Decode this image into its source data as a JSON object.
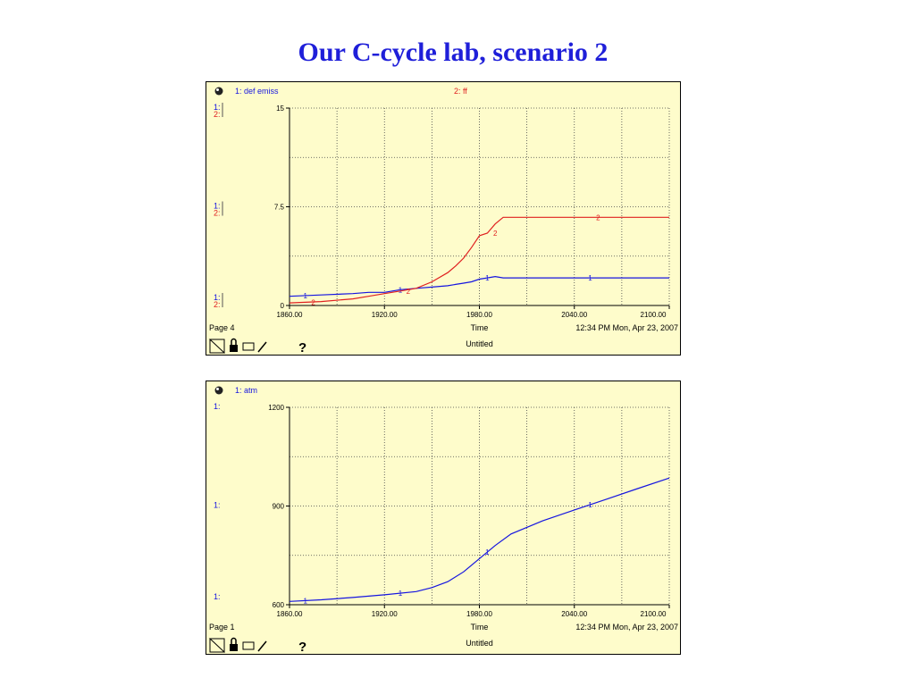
{
  "page": {
    "title": "Our C-cycle lab, scenario 2"
  },
  "colors": {
    "title": "#1f1fd9",
    "panel": "#fefccb",
    "series1": "#1515e0",
    "series2": "#e02020"
  },
  "chart_data": [
    {
      "type": "line",
      "x": [
        1860,
        1880,
        1900,
        1910,
        1920,
        1930,
        1940,
        1950,
        1960,
        1965,
        1970,
        1975,
        1980,
        1985,
        1990,
        1995,
        2000,
        2040,
        2070,
        2100
      ],
      "series": [
        {
          "name": "1: def emiss",
          "marker": "1",
          "color": "#1515e0",
          "values": [
            0.7,
            0.8,
            0.9,
            1.0,
            1.0,
            1.2,
            1.3,
            1.4,
            1.5,
            1.6,
            1.7,
            1.8,
            2.0,
            2.1,
            2.2,
            2.1,
            2.1,
            2.1,
            2.1,
            2.1
          ]
        },
        {
          "name": "2: ff",
          "marker": "2",
          "color": "#e02020",
          "values": [
            0.2,
            0.3,
            0.5,
            0.7,
            0.9,
            1.1,
            1.3,
            1.8,
            2.5,
            3.0,
            3.6,
            4.4,
            5.3,
            5.5,
            6.2,
            6.7,
            6.7,
            6.7,
            6.7,
            6.7
          ]
        }
      ],
      "yticks": [
        "15",
        "7.5",
        "0"
      ],
      "ylim": [
        0,
        15
      ],
      "xticks": [
        "1860.00",
        "1920.00",
        "1980.00",
        "2040.00",
        "2100.00"
      ],
      "xlim": [
        1860,
        2100
      ],
      "xlabel": "Time",
      "subtitle": "Untitled",
      "page_label": "Page 4",
      "timestamp": "12:34 PM  Mon, Apr 23, 2007",
      "grid": true,
      "scale_labels": [
        {
          "s1": "1:",
          "s2": "2:"
        },
        {
          "s1": "1:",
          "s2": "2:"
        },
        {
          "s1": "1:",
          "s2": "2:"
        }
      ],
      "help_icon": "?"
    },
    {
      "type": "line",
      "x": [
        1860,
        1880,
        1900,
        1920,
        1940,
        1950,
        1960,
        1970,
        1980,
        1990,
        2000,
        2020,
        2040,
        2060,
        2080,
        2100
      ],
      "series": [
        {
          "name": "1: atm",
          "marker": "1",
          "color": "#1515e0",
          "values": [
            610,
            615,
            622,
            630,
            640,
            652,
            670,
            700,
            740,
            780,
            815,
            855,
            888,
            920,
            953,
            985
          ]
        }
      ],
      "yticks": [
        "1200",
        "900",
        "600"
      ],
      "ylim": [
        600,
        1200
      ],
      "xticks": [
        "1860.00",
        "1920.00",
        "1980.00",
        "2040.00",
        "2100.00"
      ],
      "xlim": [
        1860,
        2100
      ],
      "xlabel": "Time",
      "subtitle": "Untitled",
      "page_label": "Page 1",
      "timestamp": "12:34 PM  Mon, Apr 23, 2007",
      "grid": true,
      "scale_labels": [
        {
          "s1": "1:"
        },
        {
          "s1": "1:"
        },
        {
          "s1": "1:"
        }
      ],
      "help_icon": "?"
    }
  ]
}
